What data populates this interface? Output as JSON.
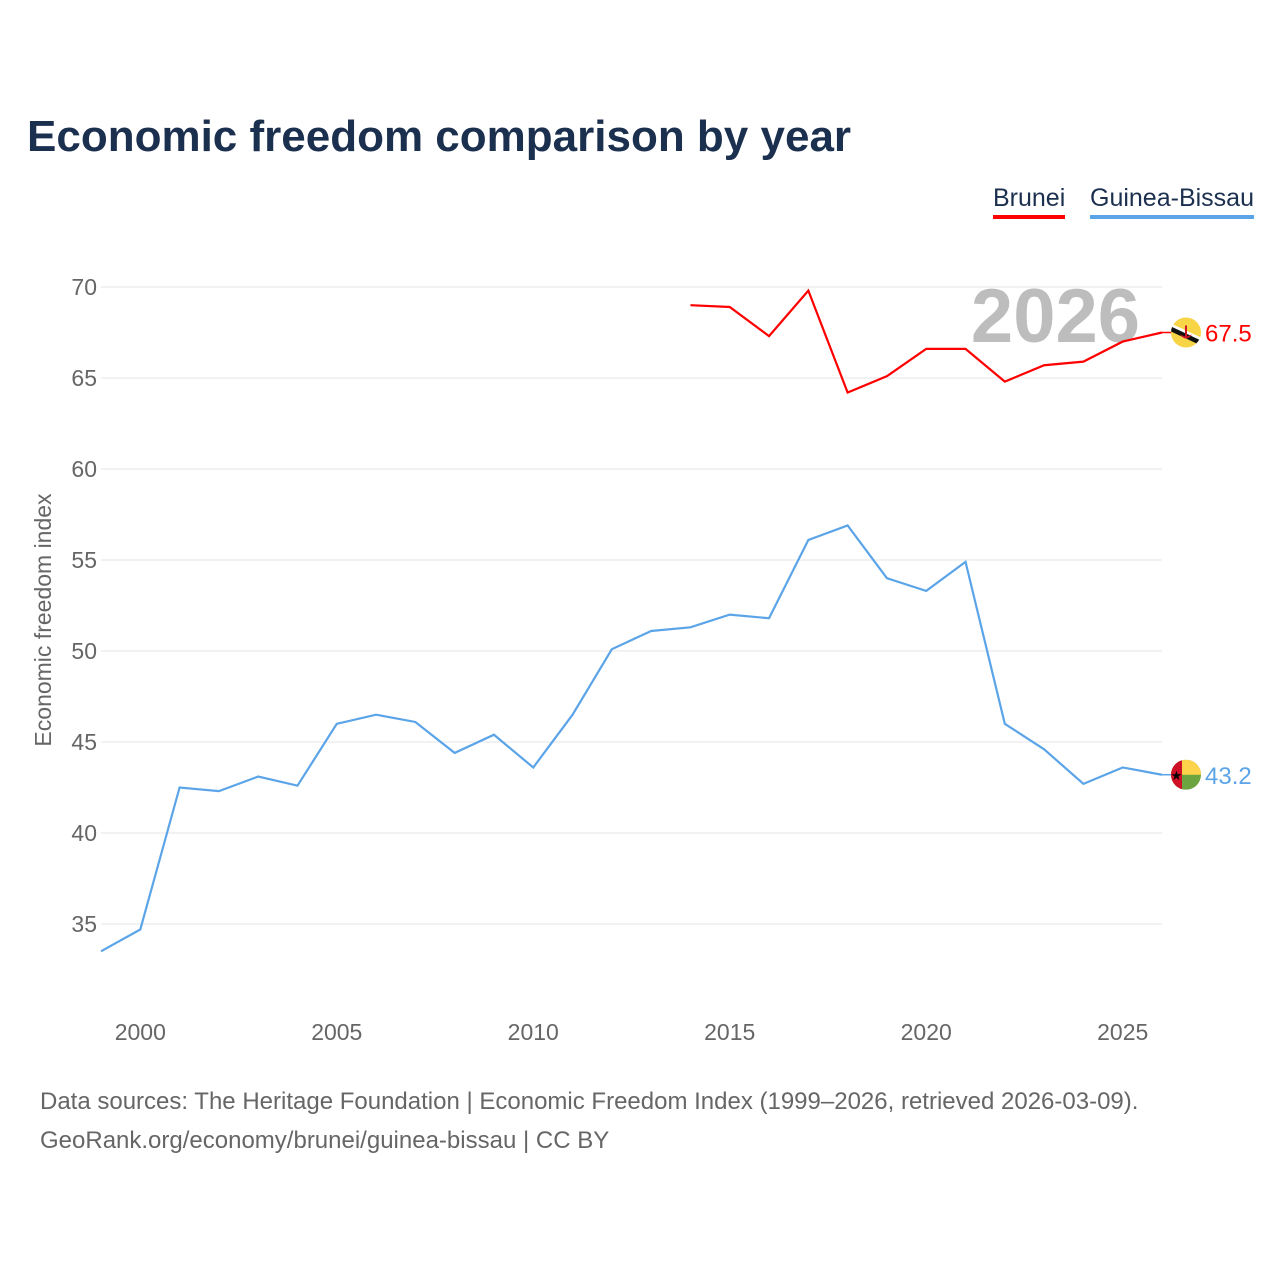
{
  "title": "Economic freedom comparison by year",
  "legend": [
    {
      "name": "Brunei",
      "color": "#ff0000"
    },
    {
      "name": "Guinea-Bissau",
      "color": "#5ba4e8"
    }
  ],
  "footer": {
    "line1": "Data sources: The Heritage Foundation | Economic Freedom Index (1999–2026, retrieved 2026-03-09).",
    "line2": "GeoRank.org/economy/brunei/guinea-bissau | CC BY"
  },
  "chart_data": {
    "type": "line",
    "title": "Economic freedom comparison by year",
    "xlabel": "",
    "ylabel": "Economic freedom index",
    "year_watermark": "2026",
    "xlim": [
      1999,
      2026
    ],
    "ylim": [
      31.5,
      72
    ],
    "xticks": [
      2000,
      2005,
      2010,
      2015,
      2020,
      2025
    ],
    "yticks": [
      35,
      40,
      45,
      50,
      55,
      60,
      65,
      70
    ],
    "grid": true,
    "legend_position": "top-right",
    "series": [
      {
        "name": "Brunei",
        "color": "#ff0000",
        "end_label": "67.5",
        "flag": "brunei-flag",
        "x": [
          2014,
          2015,
          2016,
          2017,
          2018,
          2019,
          2020,
          2021,
          2022,
          2023,
          2024,
          2025,
          2026
        ],
        "values": [
          69.0,
          68.9,
          67.3,
          69.8,
          64.2,
          65.1,
          66.6,
          66.6,
          64.8,
          65.7,
          65.9,
          67.0,
          67.5
        ]
      },
      {
        "name": "Guinea-Bissau",
        "color": "#5ba4e8",
        "end_label": "43.2",
        "flag": "guinea-bissau-flag",
        "x": [
          1999,
          2000,
          2001,
          2002,
          2003,
          2004,
          2005,
          2006,
          2007,
          2008,
          2009,
          2010,
          2011,
          2012,
          2013,
          2014,
          2015,
          2016,
          2017,
          2018,
          2019,
          2020,
          2021,
          2022,
          2023,
          2024,
          2025,
          2026
        ],
        "values": [
          33.5,
          34.7,
          42.5,
          42.3,
          43.1,
          42.6,
          46.0,
          46.5,
          46.1,
          44.4,
          45.4,
          43.6,
          46.5,
          50.1,
          51.1,
          51.3,
          52.0,
          51.8,
          56.1,
          56.9,
          54.0,
          53.3,
          54.9,
          46.0,
          44.6,
          42.7,
          43.6,
          43.2
        ]
      }
    ]
  }
}
